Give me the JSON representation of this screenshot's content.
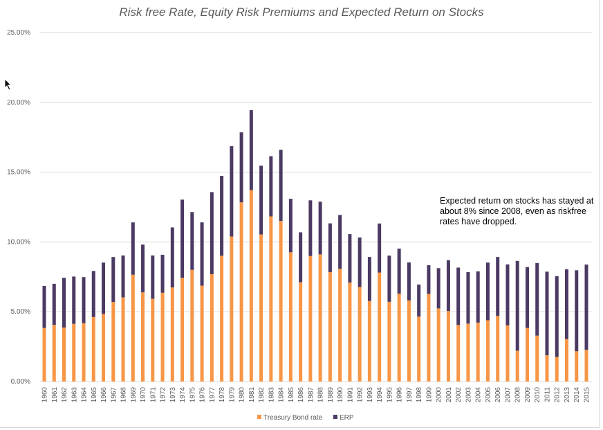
{
  "chart_data": {
    "type": "bar",
    "stacked": true,
    "title": "Risk free Rate, Equity Risk Premiums and Expected Return on Stocks",
    "xlabel": "",
    "ylabel": "",
    "ylim": [
      0,
      25
    ],
    "yticks": [
      "0.00%",
      "5.00%",
      "10.00%",
      "15.00%",
      "20.00%",
      "25.00%"
    ],
    "grid": true,
    "legend": "bottom",
    "categories": [
      "1960",
      "1961",
      "1962",
      "1963",
      "1964",
      "1965",
      "1966",
      "1967",
      "1968",
      "1969",
      "1970",
      "1971",
      "1972",
      "1973",
      "1974",
      "1975",
      "1976",
      "1977",
      "1978",
      "1979",
      "1980",
      "1981",
      "1982",
      "1983",
      "1984",
      "1985",
      "1986",
      "1987",
      "1988",
      "1989",
      "1990",
      "1991",
      "1992",
      "1993",
      "1994",
      "1995",
      "1996",
      "1997",
      "1998",
      "1999",
      "2000",
      "2001",
      "2002",
      "2003",
      "2004",
      "2005",
      "2006",
      "2007",
      "2008",
      "2009",
      "2010",
      "2011",
      "2012",
      "2013",
      "2014",
      "2015"
    ],
    "series": [
      {
        "name": "Treasury Bond rate",
        "color": "#F79646",
        "values": [
          3.84,
          4.06,
          3.87,
          4.13,
          4.18,
          4.62,
          4.84,
          5.7,
          6.03,
          7.65,
          6.39,
          5.93,
          6.36,
          6.74,
          7.43,
          8.0,
          6.87,
          7.69,
          9.01,
          10.39,
          12.84,
          13.72,
          10.54,
          11.83,
          11.5,
          9.26,
          7.11,
          8.99,
          9.11,
          7.84,
          8.08,
          7.09,
          6.77,
          5.77,
          7.81,
          5.71,
          6.3,
          5.81,
          4.65,
          6.28,
          5.24,
          5.05,
          4.05,
          4.15,
          4.22,
          4.39,
          4.7,
          4.02,
          2.21,
          3.84,
          3.29,
          1.88,
          1.76,
          3.04,
          2.17,
          2.27
        ]
      },
      {
        "name": "ERP",
        "color": "#4B3A63",
        "values": [
          3.01,
          2.94,
          3.56,
          3.39,
          3.3,
          3.3,
          3.68,
          3.22,
          3.0,
          3.75,
          3.42,
          3.1,
          2.72,
          4.3,
          5.6,
          4.14,
          4.53,
          5.88,
          5.72,
          6.47,
          5.01,
          5.72,
          4.92,
          4.31,
          5.1,
          3.83,
          3.58,
          3.99,
          3.77,
          3.49,
          3.85,
          3.47,
          3.55,
          3.15,
          3.51,
          3.31,
          3.22,
          2.72,
          2.3,
          2.05,
          2.88,
          3.64,
          4.11,
          3.69,
          3.67,
          4.13,
          4.22,
          4.37,
          6.43,
          4.36,
          5.2,
          5.99,
          5.79,
          5.0,
          5.8,
          6.11
        ]
      }
    ],
    "annotation": "Expected return on stocks has stayed at about 8% since 2008, even as riskfree rates have dropped."
  }
}
